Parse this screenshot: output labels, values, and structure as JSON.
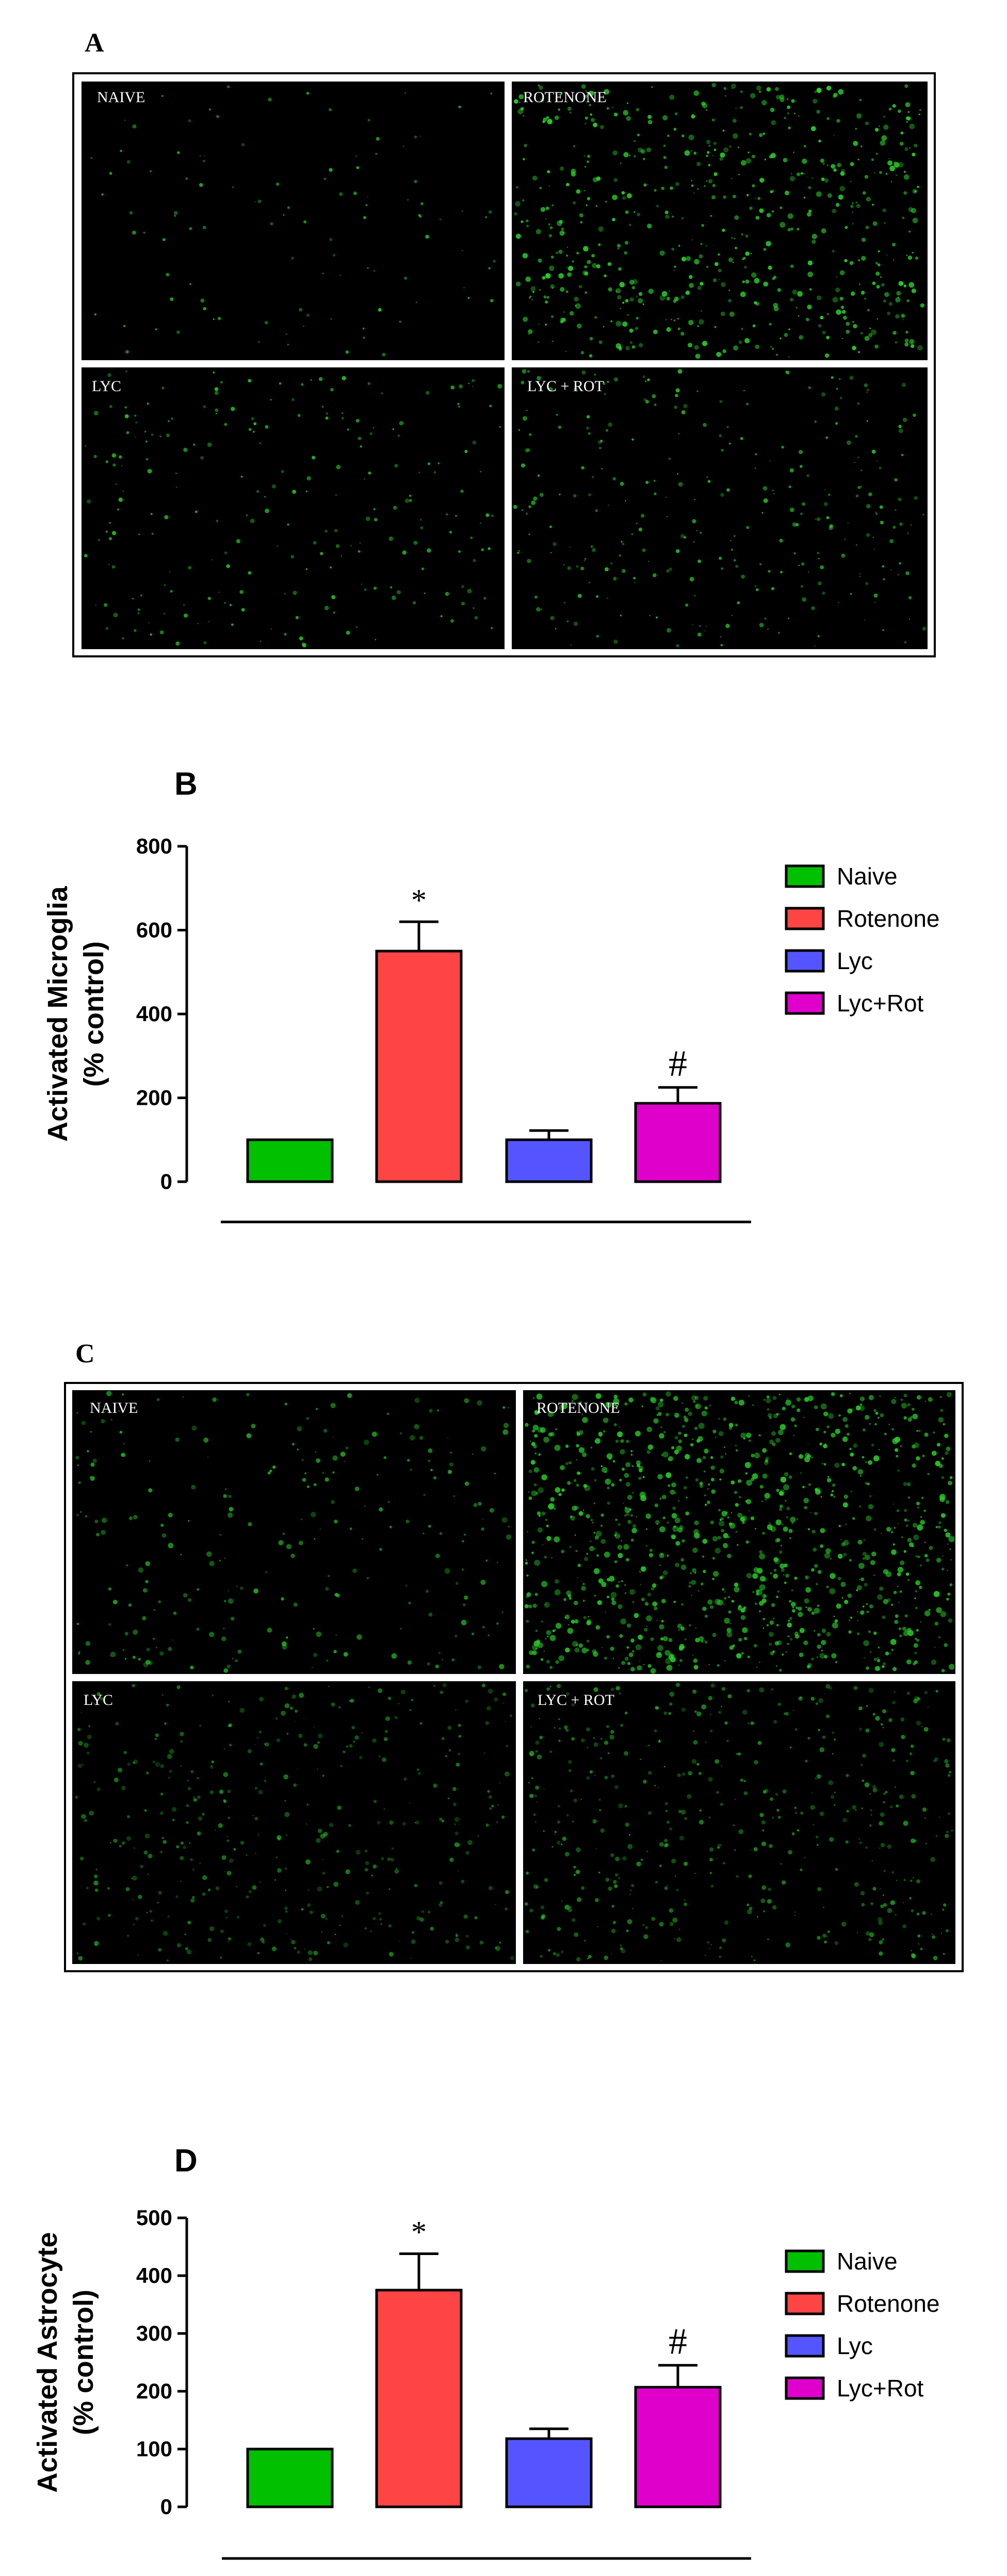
{
  "panels": [
    {
      "letter": "A",
      "labels": [
        "NAIVE",
        "ROTENONE",
        "LYC",
        "LYC + ROT"
      ]
    },
    {
      "letter": "C",
      "labels": [
        "NAIVE",
        "ROTENONE",
        "LYC",
        "LYC + ROT"
      ]
    }
  ],
  "colors": {
    "naive": "#00c000",
    "rotenone": "#ff4444",
    "lyc": "#5555ff",
    "lycrot": "#e000cc",
    "fluorescence": "#28d228"
  },
  "chart_data": [
    {
      "panel": "B",
      "type": "bar",
      "categories": [
        "Naive",
        "Rotenone",
        "Lyc",
        "Lyc+Rot"
      ],
      "values": [
        100,
        550,
        100,
        187
      ],
      "errors": [
        0,
        70,
        22,
        38
      ],
      "annotations": [
        "",
        "*",
        "",
        "#"
      ],
      "ylabel": "Activated Microglia (% control)",
      "ylim": [
        0,
        800
      ],
      "yticks": [
        0,
        200,
        400,
        600,
        800
      ],
      "legend": [
        "Naive",
        "Rotenone",
        "Lyc",
        "Lyc+Rot"
      ],
      "legend_position": "right",
      "grid": false
    },
    {
      "panel": "D",
      "type": "bar",
      "categories": [
        "Naive",
        "Rotenone",
        "Lyc",
        "Lyc+Rot"
      ],
      "values": [
        100,
        375,
        118,
        207
      ],
      "errors": [
        0,
        63,
        17,
        38
      ],
      "annotations": [
        "",
        "*",
        "",
        "#"
      ],
      "ylabel": "Activated Astrocyte (% control)",
      "ylim": [
        0,
        500
      ],
      "yticks": [
        0,
        100,
        200,
        300,
        400,
        500
      ],
      "legend": [
        "Naive",
        "Rotenone",
        "Lyc",
        "Lyc+Rot"
      ],
      "legend_position": "right",
      "grid": false
    }
  ]
}
